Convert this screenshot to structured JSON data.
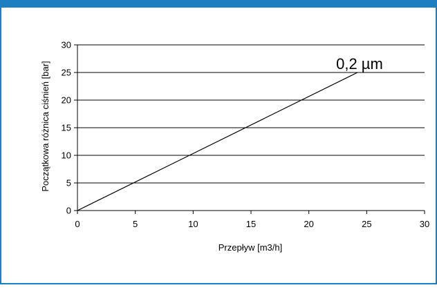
{
  "colors": {
    "border": "#1d7fc2",
    "line": "#000000",
    "grid": "#000000"
  },
  "chart_data": {
    "type": "line",
    "title": "",
    "xlabel": "Przepływ [m3/h]",
    "ylabel": "Początkowa różnica ciśnień [bar]",
    "xlim": [
      0,
      30
    ],
    "ylim": [
      0,
      30
    ],
    "xticks": [
      0,
      5,
      10,
      15,
      20,
      25,
      30
    ],
    "yticks": [
      0,
      5,
      10,
      15,
      20,
      25,
      30
    ],
    "grid": "horizontal",
    "series": [
      {
        "name": "0,2 µm",
        "x": [
          0,
          24.2
        ],
        "y": [
          0,
          25
        ]
      }
    ]
  }
}
